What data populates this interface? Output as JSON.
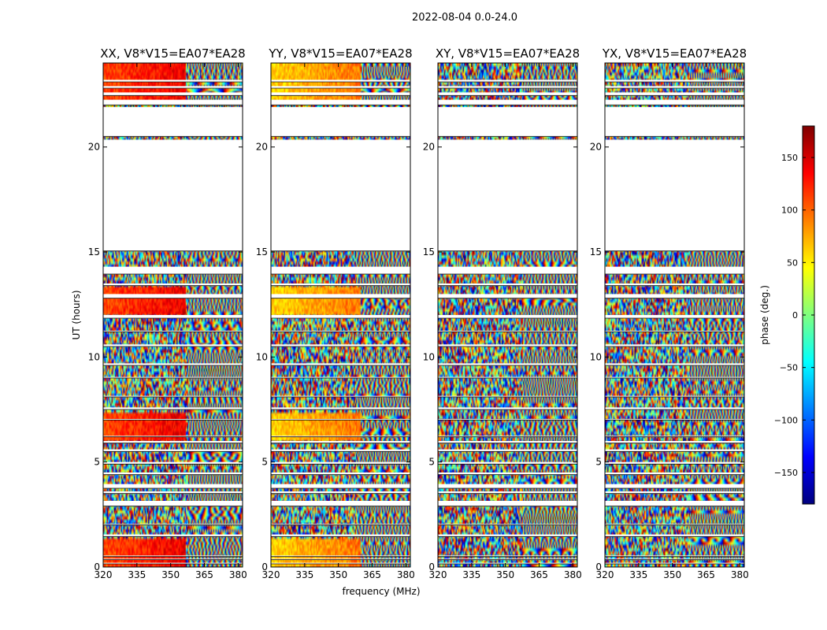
{
  "figure": {
    "suptitle": "2022-08-04 0.0-24.0",
    "xlabel": "frequency (MHz)",
    "ylabel": "UT (hours)"
  },
  "chart_data": {
    "type": "heatmap",
    "title": "2022-08-04 0.0-24.0",
    "xlabel": "frequency (MHz)",
    "ylabel": "UT (hours)",
    "xlim": [
      320,
      382
    ],
    "ylim": [
      0,
      24
    ],
    "xticks": [
      320,
      335,
      350,
      365,
      380
    ],
    "yticks": [
      0,
      5,
      10,
      15,
      20
    ],
    "panels": [
      {
        "title": "XX, V8*V15=EA07*EA28",
        "smooth_fraction": 0.6,
        "base_phase": 110
      },
      {
        "title": "YY, V8*V15=EA07*EA28",
        "smooth_fraction": 0.65,
        "base_phase": 60
      },
      {
        "title": "XY, V8*V15=EA07*EA28",
        "smooth_fraction": 0.0,
        "base_phase": 0
      },
      {
        "title": "YX, V8*V15=EA07*EA28",
        "smooth_fraction": 0.0,
        "base_phase": 0
      }
    ],
    "data_rows_hours": [
      [
        0.0,
        0.15
      ],
      [
        0.2,
        0.35
      ],
      [
        0.4,
        0.5
      ],
      [
        0.55,
        1.45
      ],
      [
        1.55,
        2.0
      ],
      [
        2.05,
        2.9
      ],
      [
        3.15,
        3.5
      ],
      [
        3.6,
        3.75
      ],
      [
        3.95,
        4.4
      ],
      [
        4.5,
        4.9
      ],
      [
        5.0,
        5.5
      ],
      [
        5.6,
        5.9
      ],
      [
        6.0,
        6.2
      ],
      [
        6.25,
        7.0
      ],
      [
        7.05,
        7.5
      ],
      [
        7.6,
        8.1
      ],
      [
        8.15,
        9.0
      ],
      [
        9.05,
        9.6
      ],
      [
        9.7,
        10.5
      ],
      [
        10.6,
        11.2
      ],
      [
        11.25,
        11.85
      ],
      [
        12.0,
        12.8
      ],
      [
        13.0,
        13.4
      ],
      [
        13.5,
        13.95
      ],
      [
        14.3,
        15.05
      ],
      [
        20.35,
        20.5
      ],
      [
        21.9,
        22.0
      ],
      [
        22.25,
        22.45
      ],
      [
        22.6,
        22.8
      ],
      [
        22.9,
        23.1
      ],
      [
        23.2,
        24.0
      ]
    ],
    "colorbar": {
      "label": "phase (deg.)",
      "range": [
        -180,
        180
      ],
      "ticks": [
        -150,
        -100,
        -50,
        0,
        50,
        100,
        150
      ],
      "tick_labels": [
        "−150",
        "−100",
        "−50",
        "0",
        "50",
        "100",
        "150"
      ],
      "colormap": "jet"
    }
  }
}
